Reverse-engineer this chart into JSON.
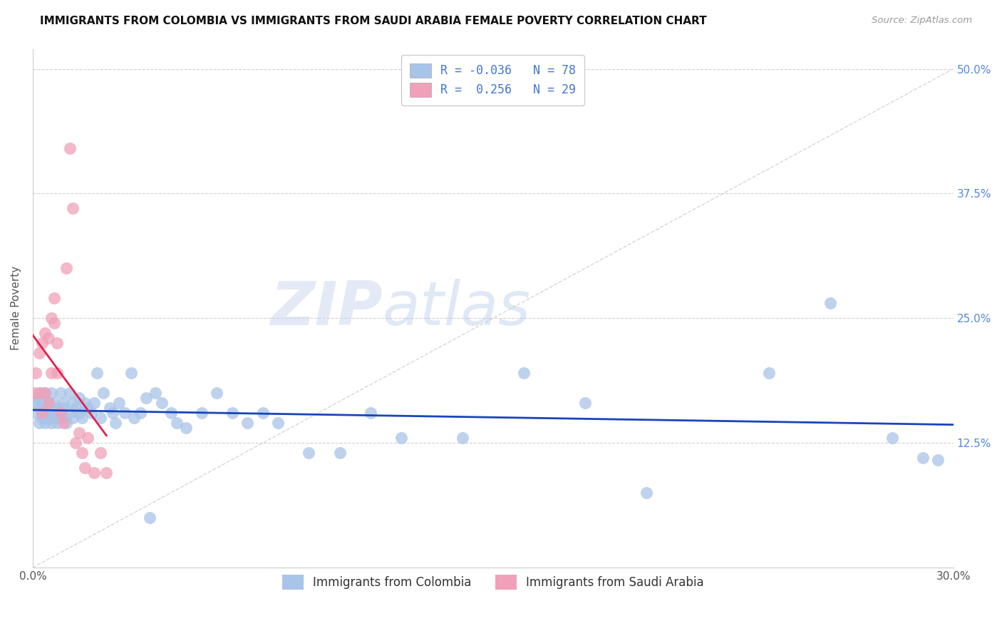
{
  "title": "IMMIGRANTS FROM COLOMBIA VS IMMIGRANTS FROM SAUDI ARABIA FEMALE POVERTY CORRELATION CHART",
  "source": "Source: ZipAtlas.com",
  "ylabel": "Female Poverty",
  "xlim": [
    0.0,
    0.3
  ],
  "ylim": [
    0.0,
    0.52
  ],
  "legend_r_colombia": "-0.036",
  "legend_n_colombia": "78",
  "legend_r_saudi": "0.256",
  "legend_n_saudi": "29",
  "color_colombia": "#a8c4e8",
  "color_saudi": "#f0a0b8",
  "color_line_colombia": "#1a44bb",
  "color_line_saudi": "#e02050",
  "color_diag": "#cccccc",
  "watermark_zip": "ZIP",
  "watermark_atlas": "atlas",
  "colombia_x": [
    0.0005,
    0.001,
    0.0015,
    0.002,
    0.002,
    0.0025,
    0.003,
    0.003,
    0.003,
    0.004,
    0.004,
    0.004,
    0.005,
    0.005,
    0.005,
    0.006,
    0.006,
    0.006,
    0.007,
    0.007,
    0.007,
    0.008,
    0.008,
    0.009,
    0.009,
    0.01,
    0.01,
    0.01,
    0.011,
    0.012,
    0.012,
    0.013,
    0.013,
    0.014,
    0.015,
    0.015,
    0.016,
    0.017,
    0.018,
    0.019,
    0.02,
    0.021,
    0.022,
    0.023,
    0.025,
    0.026,
    0.027,
    0.028,
    0.03,
    0.032,
    0.033,
    0.035,
    0.037,
    0.038,
    0.04,
    0.042,
    0.045,
    0.047,
    0.05,
    0.055,
    0.06,
    0.065,
    0.07,
    0.075,
    0.08,
    0.09,
    0.1,
    0.11,
    0.12,
    0.14,
    0.16,
    0.18,
    0.2,
    0.24,
    0.26,
    0.28,
    0.29,
    0.295
  ],
  "colombia_y": [
    0.165,
    0.155,
    0.17,
    0.16,
    0.145,
    0.175,
    0.155,
    0.165,
    0.15,
    0.16,
    0.145,
    0.175,
    0.155,
    0.165,
    0.15,
    0.16,
    0.145,
    0.175,
    0.155,
    0.165,
    0.15,
    0.16,
    0.145,
    0.175,
    0.155,
    0.165,
    0.15,
    0.16,
    0.145,
    0.175,
    0.155,
    0.165,
    0.15,
    0.16,
    0.155,
    0.17,
    0.15,
    0.165,
    0.16,
    0.155,
    0.165,
    0.195,
    0.15,
    0.175,
    0.16,
    0.155,
    0.145,
    0.165,
    0.155,
    0.195,
    0.15,
    0.155,
    0.17,
    0.05,
    0.175,
    0.165,
    0.155,
    0.145,
    0.14,
    0.155,
    0.175,
    0.155,
    0.145,
    0.155,
    0.145,
    0.115,
    0.115,
    0.155,
    0.13,
    0.13,
    0.195,
    0.165,
    0.075,
    0.195,
    0.265,
    0.13,
    0.11,
    0.108
  ],
  "saudi_x": [
    0.0005,
    0.001,
    0.002,
    0.002,
    0.003,
    0.003,
    0.004,
    0.004,
    0.005,
    0.005,
    0.006,
    0.006,
    0.007,
    0.007,
    0.008,
    0.008,
    0.009,
    0.01,
    0.011,
    0.012,
    0.013,
    0.014,
    0.015,
    0.016,
    0.017,
    0.018,
    0.02,
    0.022,
    0.024
  ],
  "saudi_y": [
    0.175,
    0.195,
    0.175,
    0.215,
    0.155,
    0.225,
    0.175,
    0.235,
    0.165,
    0.23,
    0.195,
    0.25,
    0.245,
    0.27,
    0.195,
    0.225,
    0.155,
    0.145,
    0.3,
    0.42,
    0.36,
    0.125,
    0.135,
    0.115,
    0.1,
    0.13,
    0.095,
    0.115,
    0.095
  ]
}
